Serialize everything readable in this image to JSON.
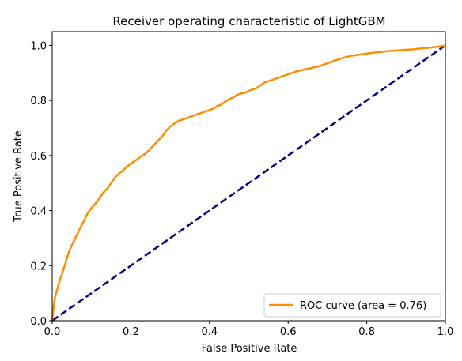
{
  "chart_data": {
    "type": "line",
    "title": "Receiver operating characteristic of LightGBM",
    "xlabel": "False Positive Rate",
    "ylabel": "True Positive Rate",
    "xlim": [
      0.0,
      1.0
    ],
    "ylim": [
      0.0,
      1.05
    ],
    "xticks": [
      0.0,
      0.2,
      0.4,
      0.6,
      0.8,
      1.0
    ],
    "yticks": [
      0.0,
      0.2,
      0.4,
      0.6,
      0.8,
      1.0
    ],
    "tick_labels": [
      "0.0",
      "0.2",
      "0.4",
      "0.6",
      "0.8",
      "1.0"
    ],
    "grid": false,
    "legend_position": "lower-right",
    "series": [
      {
        "name": "ROC curve (area = 0.76)",
        "color": "#ff8c00",
        "style": "solid",
        "x": [
          0.0,
          0.002,
          0.004,
          0.006,
          0.008,
          0.01,
          0.013,
          0.016,
          0.02,
          0.024,
          0.028,
          0.033,
          0.038,
          0.044,
          0.05,
          0.057,
          0.064,
          0.072,
          0.08,
          0.09,
          0.1,
          0.11,
          0.12,
          0.13,
          0.14,
          0.15,
          0.16,
          0.17,
          0.18,
          0.19,
          0.2,
          0.21,
          0.22,
          0.23,
          0.24,
          0.25,
          0.26,
          0.27,
          0.28,
          0.29,
          0.3,
          0.31,
          0.32,
          0.33,
          0.34,
          0.35,
          0.36,
          0.37,
          0.38,
          0.39,
          0.4,
          0.41,
          0.42,
          0.43,
          0.44,
          0.45,
          0.46,
          0.47,
          0.48,
          0.49,
          0.5,
          0.52,
          0.54,
          0.56,
          0.58,
          0.6,
          0.62,
          0.64,
          0.66,
          0.68,
          0.7,
          0.72,
          0.74,
          0.76,
          0.78,
          0.8,
          0.82,
          0.84,
          0.86,
          0.88,
          0.9,
          0.92,
          0.94,
          0.96,
          0.98,
          0.99,
          1.0
        ],
        "y": [
          0.0,
          0.03,
          0.055,
          0.075,
          0.09,
          0.1,
          0.115,
          0.13,
          0.15,
          0.165,
          0.185,
          0.205,
          0.23,
          0.255,
          0.275,
          0.295,
          0.315,
          0.34,
          0.36,
          0.39,
          0.41,
          0.425,
          0.445,
          0.465,
          0.48,
          0.5,
          0.52,
          0.535,
          0.545,
          0.56,
          0.57,
          0.58,
          0.59,
          0.6,
          0.61,
          0.625,
          0.64,
          0.655,
          0.67,
          0.69,
          0.705,
          0.715,
          0.725,
          0.73,
          0.735,
          0.74,
          0.745,
          0.75,
          0.755,
          0.76,
          0.765,
          0.77,
          0.78,
          0.785,
          0.795,
          0.805,
          0.81,
          0.82,
          0.825,
          0.828,
          0.835,
          0.845,
          0.865,
          0.875,
          0.885,
          0.895,
          0.905,
          0.912,
          0.918,
          0.925,
          0.935,
          0.945,
          0.955,
          0.962,
          0.966,
          0.97,
          0.974,
          0.977,
          0.98,
          0.982,
          0.984,
          0.986,
          0.989,
          0.992,
          0.995,
          0.997,
          1.0
        ]
      },
      {
        "color": "#000080",
        "style": "dashed",
        "x": [
          0.0,
          1.0
        ],
        "y": [
          0.0,
          1.0
        ]
      }
    ]
  }
}
